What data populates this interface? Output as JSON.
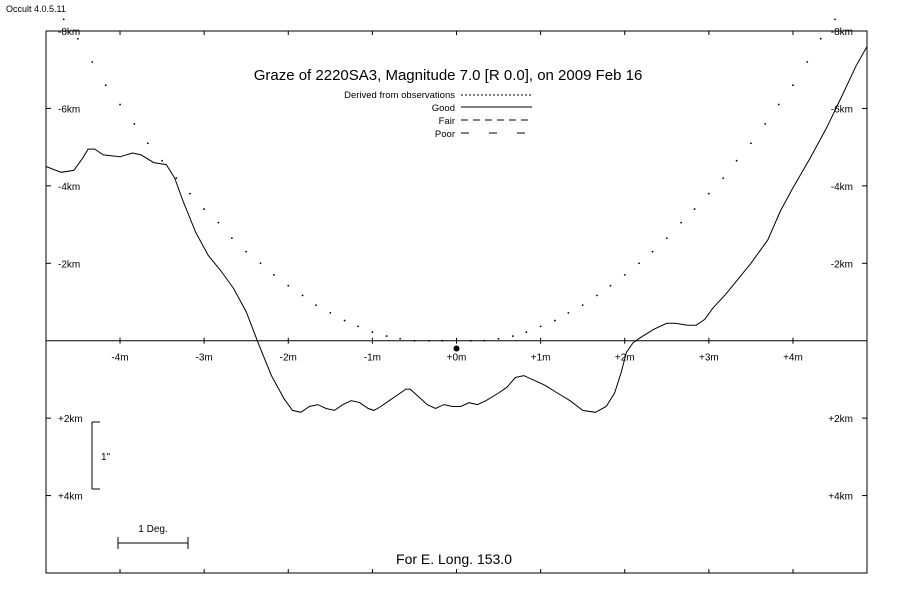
{
  "app": {
    "version": "Occult 4.0.5.11"
  },
  "footer": {
    "longitude": "For E. Long. 153.0"
  },
  "scale_bar": {
    "vertical_label": "1\"",
    "horizontal_label": "1 Deg."
  },
  "colors": {
    "ink": "#000000",
    "background": "#ffffff"
  },
  "chart_data": {
    "type": "line",
    "title": "Graze of  2220SA3,  Magnitude 7.0 [R 0.0],   on 2009 Feb 16",
    "x_unit": "m",
    "y_unit": "km",
    "xlim": [
      -4.88,
      4.88
    ],
    "ylim": [
      -8.0,
      6.0
    ],
    "x_ticks": [
      -4,
      -3,
      -2,
      -1,
      0,
      1,
      2,
      3,
      4
    ],
    "x_tick_labels": [
      "-4m",
      "-3m",
      "-2m",
      "-1m",
      "+0m",
      "+1m",
      "+2m",
      "+3m",
      "+4m"
    ],
    "y_ticks": [
      -8,
      -6,
      -4,
      -2,
      2,
      4
    ],
    "y_tick_labels": [
      "-8km",
      "-6km",
      "-4km",
      "-2km",
      "+2km",
      "+4km"
    ],
    "legend": {
      "placement": "top-center",
      "entries": [
        {
          "label": "Derived from observations",
          "style": "fine-dotted"
        },
        {
          "label": "Good",
          "style": "solid"
        },
        {
          "label": "Fair",
          "style": "dashed"
        },
        {
          "label": "Poor",
          "style": "long-dashed"
        }
      ]
    },
    "star_marker": {
      "x": 0.0,
      "y": 0.2
    },
    "series": [
      {
        "style": "dotted",
        "points": [
          [
            -4.67,
            -8.3
          ],
          [
            -4.5,
            -7.8
          ],
          [
            -4.33,
            -7.2
          ],
          [
            -4.17,
            -6.6
          ],
          [
            -4.0,
            -6.1
          ],
          [
            -3.83,
            -5.6
          ],
          [
            -3.67,
            -5.1
          ],
          [
            -3.5,
            -4.65
          ],
          [
            -3.33,
            -4.2
          ],
          [
            -3.17,
            -3.8
          ],
          [
            -3.0,
            -3.4
          ],
          [
            -2.83,
            -3.05
          ],
          [
            -2.67,
            -2.65
          ],
          [
            -2.5,
            -2.3
          ],
          [
            -2.33,
            -2.0
          ],
          [
            -2.17,
            -1.7
          ],
          [
            -2.0,
            -1.42
          ],
          [
            -1.83,
            -1.17
          ],
          [
            -1.67,
            -0.92
          ],
          [
            -1.5,
            -0.72
          ],
          [
            -1.33,
            -0.52
          ],
          [
            -1.17,
            -0.37
          ],
          [
            -1.0,
            -0.22
          ],
          [
            -0.83,
            -0.12
          ],
          [
            -0.67,
            -0.05
          ],
          [
            -0.5,
            0.0
          ],
          [
            -0.33,
            0.0
          ],
          [
            -0.17,
            0.0
          ],
          [
            0.0,
            0.0
          ],
          [
            0.17,
            0.0
          ],
          [
            0.33,
            0.0
          ],
          [
            0.5,
            -0.05
          ],
          [
            0.67,
            -0.12
          ],
          [
            0.83,
            -0.22
          ],
          [
            1.0,
            -0.37
          ],
          [
            1.17,
            -0.52
          ],
          [
            1.33,
            -0.72
          ],
          [
            1.5,
            -0.92
          ],
          [
            1.67,
            -1.17
          ],
          [
            1.83,
            -1.42
          ],
          [
            2.0,
            -1.7
          ],
          [
            2.17,
            -2.0
          ],
          [
            2.33,
            -2.3
          ],
          [
            2.5,
            -2.65
          ],
          [
            2.67,
            -3.05
          ],
          [
            2.83,
            -3.4
          ],
          [
            3.0,
            -3.8
          ],
          [
            3.17,
            -4.2
          ],
          [
            3.33,
            -4.65
          ],
          [
            3.5,
            -5.1
          ],
          [
            3.67,
            -5.6
          ],
          [
            3.83,
            -6.1
          ],
          [
            4.0,
            -6.6
          ],
          [
            4.17,
            -7.2
          ],
          [
            4.33,
            -7.8
          ],
          [
            4.5,
            -8.3
          ]
        ]
      },
      {
        "style": "solid",
        "points": [
          [
            -4.88,
            -4.5
          ],
          [
            -4.7,
            -4.35
          ],
          [
            -4.55,
            -4.4
          ],
          [
            -4.45,
            -4.7
          ],
          [
            -4.38,
            -4.95
          ],
          [
            -4.3,
            -4.95
          ],
          [
            -4.2,
            -4.8
          ],
          [
            -4.0,
            -4.75
          ],
          [
            -3.85,
            -4.85
          ],
          [
            -3.75,
            -4.8
          ],
          [
            -3.6,
            -4.6
          ],
          [
            -3.45,
            -4.55
          ],
          [
            -3.35,
            -4.2
          ],
          [
            -3.25,
            -3.6
          ],
          [
            -3.1,
            -2.8
          ],
          [
            -2.95,
            -2.2
          ],
          [
            -2.8,
            -1.8
          ],
          [
            -2.65,
            -1.35
          ],
          [
            -2.5,
            -0.75
          ],
          [
            -2.35,
            0.1
          ],
          [
            -2.2,
            0.9
          ],
          [
            -2.05,
            1.5
          ],
          [
            -1.95,
            1.8
          ],
          [
            -1.85,
            1.85
          ],
          [
            -1.75,
            1.7
          ],
          [
            -1.65,
            1.65
          ],
          [
            -1.55,
            1.75
          ],
          [
            -1.45,
            1.8
          ],
          [
            -1.35,
            1.65
          ],
          [
            -1.25,
            1.55
          ],
          [
            -1.15,
            1.6
          ],
          [
            -1.05,
            1.75
          ],
          [
            -0.98,
            1.8
          ],
          [
            -0.9,
            1.7
          ],
          [
            -0.8,
            1.55
          ],
          [
            -0.7,
            1.4
          ],
          [
            -0.6,
            1.25
          ],
          [
            -0.55,
            1.25
          ],
          [
            -0.45,
            1.45
          ],
          [
            -0.35,
            1.65
          ],
          [
            -0.25,
            1.75
          ],
          [
            -0.15,
            1.65
          ],
          [
            -0.05,
            1.7
          ],
          [
            0.05,
            1.7
          ],
          [
            0.15,
            1.6
          ],
          [
            0.25,
            1.65
          ],
          [
            0.35,
            1.55
          ],
          [
            0.5,
            1.35
          ],
          [
            0.6,
            1.2
          ],
          [
            0.7,
            0.95
          ],
          [
            0.8,
            0.9
          ],
          [
            0.9,
            1.0
          ],
          [
            1.05,
            1.15
          ],
          [
            1.2,
            1.35
          ],
          [
            1.35,
            1.55
          ],
          [
            1.5,
            1.8
          ],
          [
            1.65,
            1.85
          ],
          [
            1.78,
            1.7
          ],
          [
            1.88,
            1.35
          ],
          [
            1.96,
            0.8
          ],
          [
            2.02,
            0.3
          ],
          [
            2.1,
            0.05
          ],
          [
            2.2,
            -0.1
          ],
          [
            2.35,
            -0.3
          ],
          [
            2.5,
            -0.45
          ],
          [
            2.6,
            -0.45
          ],
          [
            2.75,
            -0.4
          ],
          [
            2.85,
            -0.4
          ],
          [
            2.95,
            -0.55
          ],
          [
            3.05,
            -0.85
          ],
          [
            3.2,
            -1.2
          ],
          [
            3.35,
            -1.6
          ],
          [
            3.5,
            -2.0
          ],
          [
            3.7,
            -2.6
          ],
          [
            3.85,
            -3.35
          ],
          [
            4.0,
            -3.95
          ],
          [
            4.2,
            -4.7
          ],
          [
            4.4,
            -5.5
          ],
          [
            4.6,
            -6.4
          ],
          [
            4.75,
            -7.1
          ],
          [
            4.88,
            -7.6
          ]
        ]
      }
    ]
  }
}
